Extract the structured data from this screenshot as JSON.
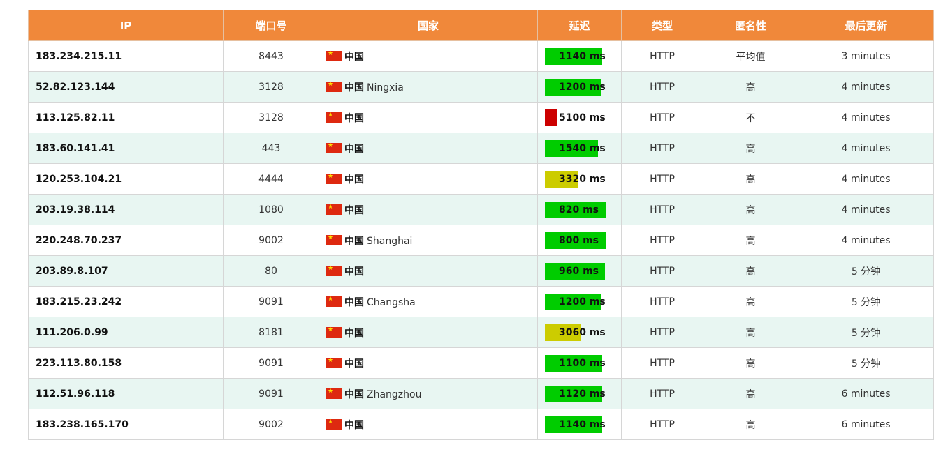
{
  "columns": [
    "IP",
    "端口号",
    "国家",
    "延迟",
    "类型",
    "匿名性",
    "最后更新"
  ],
  "rows": [
    {
      "ip": "183.234.215.11",
      "port": "8443",
      "country": "中国",
      "city": "",
      "latency": "1140 ms",
      "level": "green",
      "fill": 0.86,
      "type": "HTTP",
      "anon": "平均值",
      "updated": "3 minutes"
    },
    {
      "ip": "52.82.123.144",
      "port": "3128",
      "country": "中国",
      "city": "Ningxia",
      "latency": "1200 ms",
      "level": "green",
      "fill": 0.85,
      "type": "HTTP",
      "anon": "高",
      "updated": "4 minutes"
    },
    {
      "ip": "113.125.82.11",
      "port": "3128",
      "country": "中国",
      "city": "",
      "latency": "5100 ms",
      "level": "red",
      "fill": 0.19,
      "type": "HTTP",
      "anon": "不",
      "updated": "4 minutes"
    },
    {
      "ip": "183.60.141.41",
      "port": "443",
      "country": "中国",
      "city": "",
      "latency": "1540 ms",
      "level": "green",
      "fill": 0.8,
      "type": "HTTP",
      "anon": "高",
      "updated": "4 minutes"
    },
    {
      "ip": "120.253.104.21",
      "port": "4444",
      "country": "中国",
      "city": "",
      "latency": "3320 ms",
      "level": "yellow",
      "fill": 0.5,
      "type": "HTTP",
      "anon": "高",
      "updated": "4 minutes"
    },
    {
      "ip": "203.19.38.114",
      "port": "1080",
      "country": "中国",
      "city": "",
      "latency": "820 ms",
      "level": "green",
      "fill": 0.92,
      "type": "HTTP",
      "anon": "高",
      "updated": "4 minutes"
    },
    {
      "ip": "220.248.70.237",
      "port": "9002",
      "country": "中国",
      "city": "Shanghai",
      "latency": "800 ms",
      "level": "green",
      "fill": 0.92,
      "type": "HTTP",
      "anon": "高",
      "updated": "4 minutes"
    },
    {
      "ip": "203.89.8.107",
      "port": "80",
      "country": "中国",
      "city": "",
      "latency": "960 ms",
      "level": "green",
      "fill": 0.9,
      "type": "HTTP",
      "anon": "高",
      "updated": "5 分钟"
    },
    {
      "ip": "183.215.23.242",
      "port": "9091",
      "country": "中国",
      "city": "Changsha",
      "latency": "1200 ms",
      "level": "green",
      "fill": 0.85,
      "type": "HTTP",
      "anon": "高",
      "updated": "5 分钟"
    },
    {
      "ip": "111.206.0.99",
      "port": "8181",
      "country": "中国",
      "city": "",
      "latency": "3060 ms",
      "level": "yellow",
      "fill": 0.54,
      "type": "HTTP",
      "anon": "高",
      "updated": "5 分钟"
    },
    {
      "ip": "223.113.80.158",
      "port": "9091",
      "country": "中国",
      "city": "",
      "latency": "1100 ms",
      "level": "green",
      "fill": 0.86,
      "type": "HTTP",
      "anon": "高",
      "updated": "5 分钟"
    },
    {
      "ip": "112.51.96.118",
      "port": "9091",
      "country": "中国",
      "city": "Zhangzhou",
      "latency": "1120 ms",
      "level": "green",
      "fill": 0.86,
      "type": "HTTP",
      "anon": "高",
      "updated": "6 minutes"
    },
    {
      "ip": "183.238.165.170",
      "port": "9002",
      "country": "中国",
      "city": "",
      "latency": "1140 ms",
      "level": "green",
      "fill": 0.86,
      "type": "HTTP",
      "anon": "高",
      "updated": "6 minutes"
    }
  ],
  "colors": {
    "header_bg": "#f0883a",
    "row_alt": "#e8f6f2",
    "green": "#00cc00",
    "yellow": "#cccc00",
    "red": "#cc0000"
  },
  "icons": {
    "flag": "china-flag-icon"
  }
}
